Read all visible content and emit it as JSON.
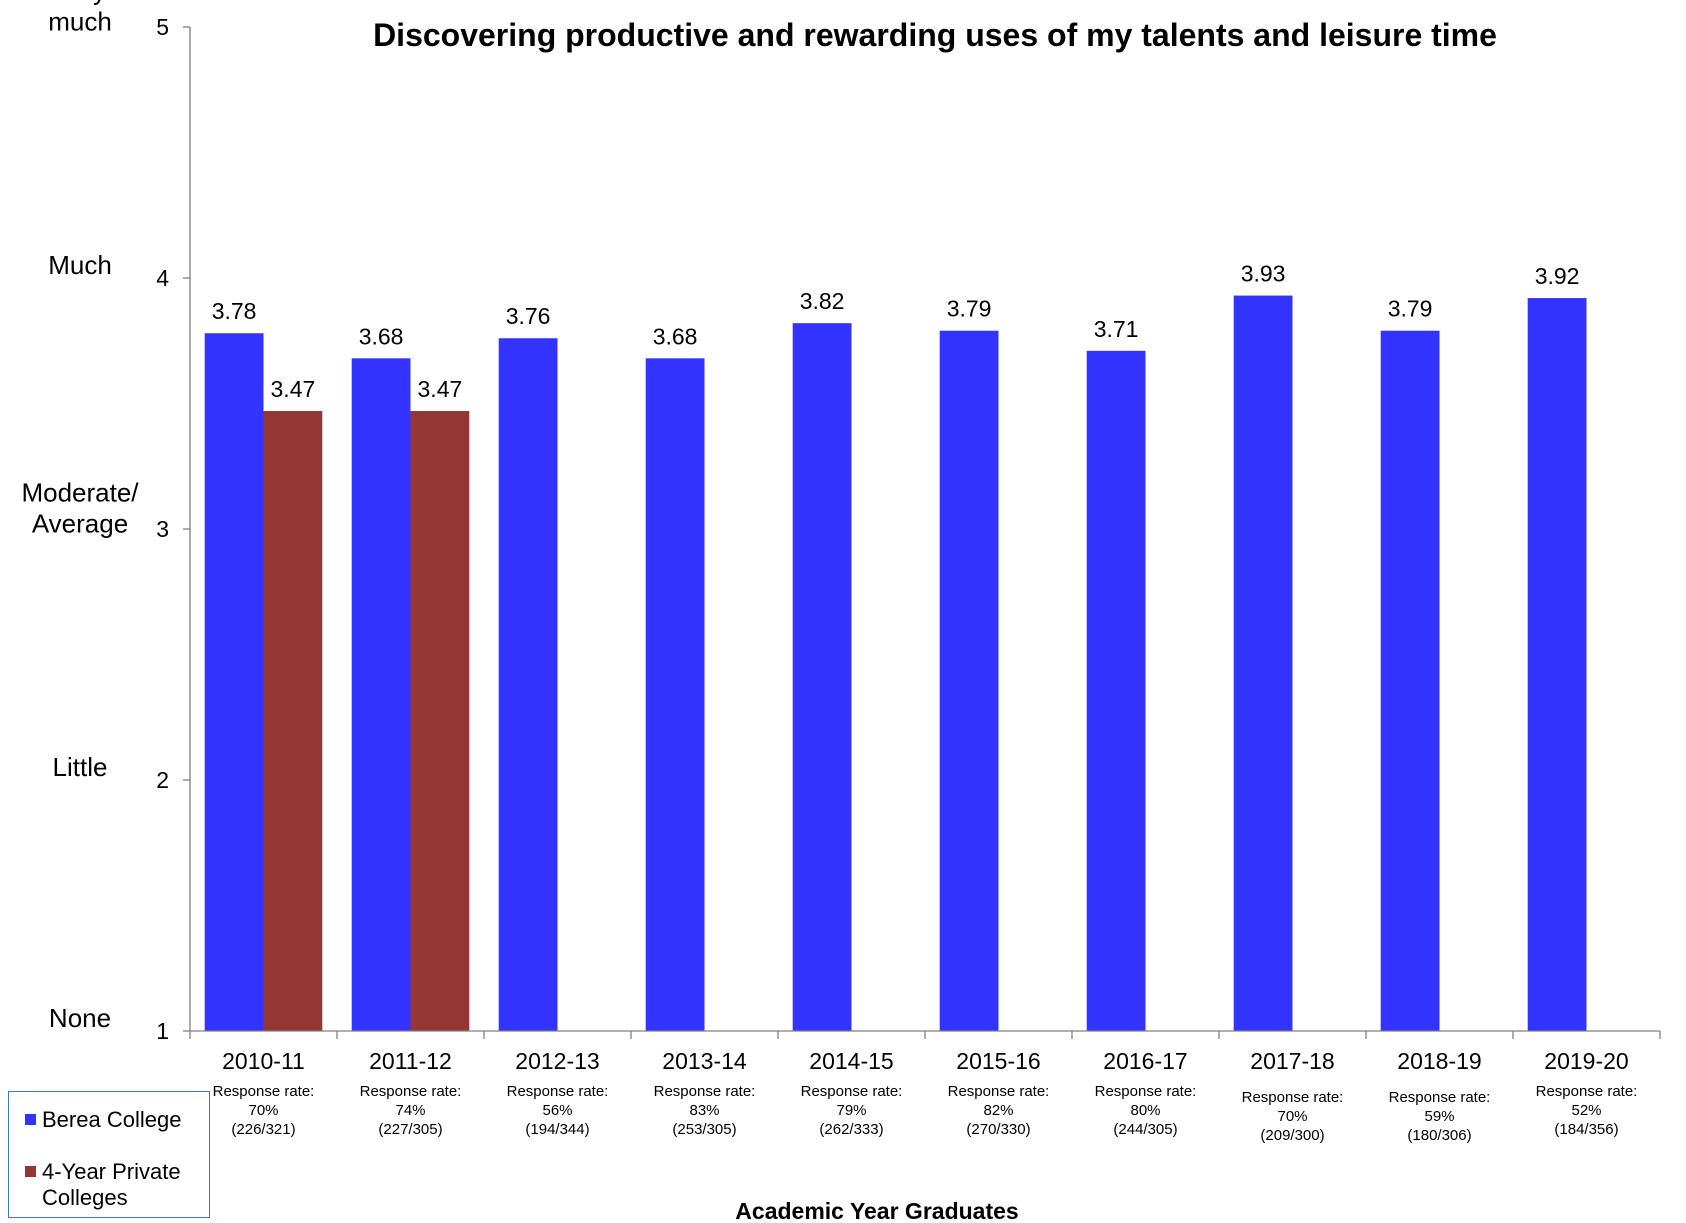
{
  "chart_data": {
    "type": "bar",
    "title": "Discovering productive and rewarding uses of my talents and leisure time",
    "xlabel": "Academic Year Graduates",
    "ylabel": "",
    "ylim": [
      1,
      5
    ],
    "yticks": [
      1,
      2,
      3,
      4,
      5
    ],
    "y_category_labels": [
      {
        "value": 5,
        "lines": [
          "Very",
          "much"
        ]
      },
      {
        "value": 4,
        "lines": [
          "Much"
        ]
      },
      {
        "value": 3,
        "lines": [
          "Moderate/",
          "Average"
        ]
      },
      {
        "value": 2,
        "lines": [
          "Little"
        ]
      },
      {
        "value": 1,
        "lines": [
          "None"
        ]
      }
    ],
    "categories": [
      "2010-11",
      "2011-12",
      "2012-13",
      "2013-14",
      "2014-15",
      "2015-16",
      "2016-17",
      "2017-18",
      "2018-19",
      "2019-20"
    ],
    "response_rates": [
      [
        "Response rate:",
        "70%",
        "(226/321)"
      ],
      [
        "Response rate:",
        "74%",
        "(227/305)"
      ],
      [
        "Response rate:",
        "56%",
        "(194/344)"
      ],
      [
        "Response rate:",
        "83%",
        "(253/305)"
      ],
      [
        "Response rate:",
        "79%",
        "(262/333)"
      ],
      [
        "Response rate:",
        "82%",
        "(270/330)"
      ],
      [
        "Response rate:",
        "80%",
        "(244/305)"
      ],
      [
        "Response rate:",
        "70%",
        "(209/300)"
      ],
      [
        "Response rate:",
        "59%",
        "(180/306)"
      ],
      [
        "Response rate:",
        "52%",
        "(184/356)"
      ]
    ],
    "series": [
      {
        "name": "Berea College",
        "color": "#3333ff",
        "values": [
          3.78,
          3.68,
          3.76,
          3.68,
          3.82,
          3.79,
          3.71,
          3.93,
          3.79,
          3.92
        ]
      },
      {
        "name": "4-Year Private Colleges",
        "color": "#943634",
        "values": [
          3.47,
          3.47,
          null,
          null,
          null,
          null,
          null,
          null,
          null,
          null
        ]
      }
    ],
    "grid": false,
    "legend_position": "bottom-left"
  }
}
